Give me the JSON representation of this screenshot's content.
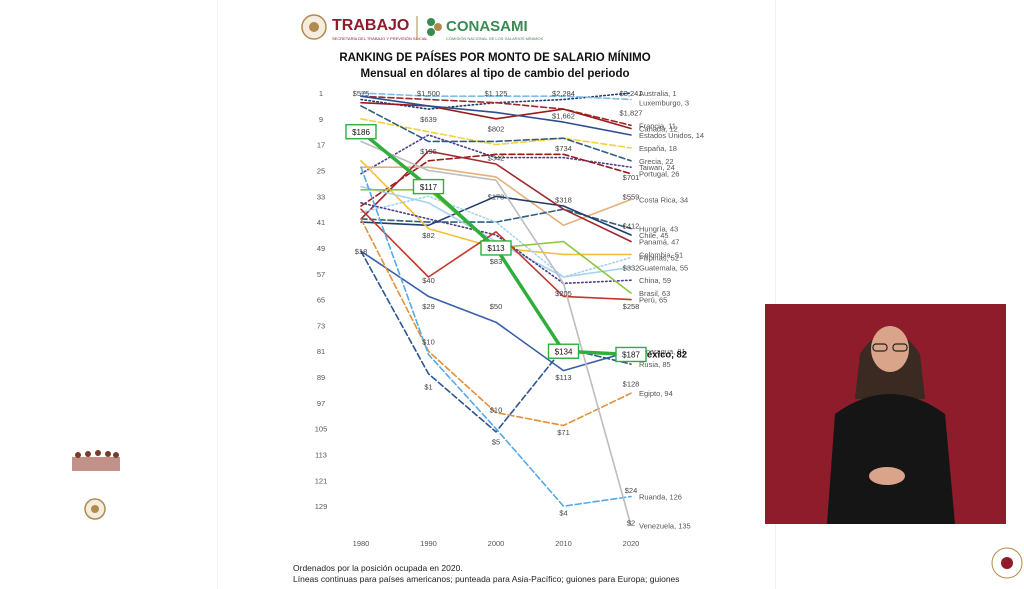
{
  "header": {
    "trabajo": "TRABAJO",
    "trabajo_sub": "SECRETARÍA DEL TRABAJO Y PREVISIÓN SOCIAL",
    "conasami": "CONASAMI",
    "conasami_sub": "COMISIÓN NACIONAL DE LOS SALARIOS MÍNIMOS"
  },
  "footnote": {
    "line1": "Ordenados por la posición ocupada en 2020.",
    "line2": "Líneas continuas para países americanos; punteada para Asia-Pacífico; guiones para Europa; guiones"
  },
  "colors": {
    "mexico": "#2fae3c",
    "interpreter_bg": "#8e1c2b",
    "gold": "#b08b4f",
    "conasami_green": "#3a8a53"
  },
  "chart_data": {
    "type": "line",
    "title": "RANKING DE PAÍSES POR MONTO DE SALARIO MÍNIMO",
    "subtitle": "Mensual en dólares al tipo de cambio del periodo",
    "x": [
      "1980",
      "1990",
      "2000",
      "2010",
      "2020"
    ],
    "y_ticks": [
      "1",
      "9",
      "17",
      "25",
      "33",
      "41",
      "49",
      "57",
      "65",
      "73",
      "81",
      "89",
      "97",
      "105",
      "113",
      "121",
      "129"
    ],
    "ylim": [
      1,
      137
    ],
    "y_reversed": true,
    "series": [
      {
        "name": "Australia, 1",
        "style": "dotted",
        "color": "#1f3d6e",
        "values": [
          3,
          6,
          4,
          3,
          1
        ]
      },
      {
        "name": "Luxemburgo, 3",
        "style": "dashed",
        "color": "#7fbbe6",
        "values": [
          1,
          2,
          2,
          2,
          3
        ]
      },
      {
        "name": "Francia, 11",
        "style": "dashed",
        "color": "#a0282c",
        "values": [
          2,
          3,
          4,
          6,
          11
        ]
      },
      {
        "name": "Canadá, 12",
        "style": "solid",
        "color": "#9b1b1b",
        "values": [
          4,
          5,
          9,
          6,
          12
        ]
      },
      {
        "name": "Estados Unidos, 14",
        "style": "solid",
        "color": "#2e4f8f",
        "values": [
          2,
          5,
          7,
          10,
          14
        ]
      },
      {
        "name": "España, 18",
        "style": "dashed",
        "color": "#f5d23c",
        "values": [
          9,
          13,
          17,
          15,
          18
        ]
      },
      {
        "name": "Grecia, 22",
        "style": "dashed",
        "color": "#2e5f82",
        "values": [
          5,
          16,
          16,
          15,
          22
        ]
      },
      {
        "name": "Taiwan, 24",
        "style": "dotted",
        "color": "#4c3f8f",
        "values": [
          26,
          14,
          21,
          21,
          24
        ]
      },
      {
        "name": "Portugal, 26",
        "style": "dashed",
        "color": "#9b1b1b",
        "values": [
          36,
          22,
          20,
          20,
          26
        ]
      },
      {
        "name": "Costa Rica, 34",
        "style": "solid",
        "color": "#e6b07a",
        "values": [
          24,
          24,
          27,
          42,
          34
        ]
      },
      {
        "name": "Hungría, 43",
        "style": "dashed",
        "color": "#2e5f82",
        "values": [
          40,
          41,
          41,
          37,
          43
        ]
      },
      {
        "name": "Chile, 45",
        "style": "solid",
        "color": "#1f3d6e",
        "values": [
          41,
          42,
          33,
          36,
          45
        ]
      },
      {
        "name": "Panamá, 47",
        "style": "solid",
        "color": "#a0282c",
        "values": [
          40,
          19,
          23,
          37,
          47
        ]
      },
      {
        "name": "Colombia, 51",
        "style": "solid",
        "color": "#f2c232",
        "values": [
          22,
          43,
          49,
          51,
          51
        ]
      },
      {
        "name": "Filipinas, 52",
        "style": "dotted",
        "color": "#a8d2ef",
        "values": [
          38,
          33,
          41,
          58,
          52
        ]
      },
      {
        "name": "Guatemala, 55",
        "style": "solid",
        "color": "#a8d2ef",
        "values": [
          30,
          35,
          47,
          58,
          55
        ]
      },
      {
        "name": "China, 59",
        "style": "dotted",
        "color": "#4c3f8f",
        "values": [
          35,
          40,
          45,
          60,
          59
        ]
      },
      {
        "name": "Brasil, 63",
        "style": "solid",
        "color": "#8dc63f",
        "values": [
          31,
          31,
          49,
          47,
          63
        ]
      },
      {
        "name": "Perú, 65",
        "style": "solid",
        "color": "#c0392b",
        "values": [
          37,
          58,
          44,
          64,
          65
        ]
      },
      {
        "name": "Nicaragua, 81",
        "style": "solid",
        "color": "#3a5fa8",
        "values": [
          50,
          64,
          72,
          87,
          81
        ]
      },
      {
        "name": "México, 82",
        "style": "solid",
        "color": "#2fae3c",
        "values": [
          13,
          30,
          49,
          81,
          82
        ]
      },
      {
        "name": "Rusia, 85",
        "style": "dashed",
        "color": "#2a5590",
        "values": [
          50,
          88,
          106,
          80,
          85
        ]
      },
      {
        "name": "Egipto, 94",
        "style": "dashed",
        "color": "#e0913a",
        "values": [
          40,
          81,
          100,
          104,
          94
        ]
      },
      {
        "name": "Ruanda, 126",
        "style": "dashed",
        "color": "#55a9e6",
        "values": [
          24,
          82,
          105,
          129,
          126
        ]
      },
      {
        "name": "Venezuela, 135",
        "style": "solid",
        "color": "#bdbdbd",
        "values": [
          16,
          25,
          28,
          60,
          135
        ]
      }
    ],
    "value_labels": [
      {
        "text": "$575",
        "x": "1980",
        "y": 1
      },
      {
        "text": "$1,500",
        "x": "1990",
        "y": 1
      },
      {
        "text": "$1,125",
        "x": "2000",
        "y": 1
      },
      {
        "text": "$2,284",
        "x": "2010",
        "y": 1
      },
      {
        "text": "$3,241",
        "x": "2020",
        "y": 1
      },
      {
        "text": "$639",
        "x": "1990",
        "y": 9
      },
      {
        "text": "$802",
        "x": "2000",
        "y": 12
      },
      {
        "text": "$1,662",
        "x": "2010",
        "y": 8
      },
      {
        "text": "$1,827",
        "x": "2020",
        "y": 7
      },
      {
        "text": "$196",
        "x": "1990",
        "y": 19
      },
      {
        "text": "$342",
        "x": "2000",
        "y": 21
      },
      {
        "text": "$734",
        "x": "2010",
        "y": 18
      },
      {
        "text": "$701",
        "x": "2020",
        "y": 27
      },
      {
        "text": "$178",
        "x": "2000",
        "y": 33
      },
      {
        "text": "$318",
        "x": "2010",
        "y": 34
      },
      {
        "text": "$559",
        "x": "2020",
        "y": 33
      },
      {
        "text": "$82",
        "x": "1990",
        "y": 45
      },
      {
        "text": "$412",
        "x": "2020",
        "y": 42
      },
      {
        "text": "$18",
        "x": "1980",
        "y": 50
      },
      {
        "text": "$40",
        "x": "1990",
        "y": 59
      },
      {
        "text": "$83",
        "x": "2000",
        "y": 53
      },
      {
        "text": "$332",
        "x": "2020",
        "y": 55
      },
      {
        "text": "$205",
        "x": "2010",
        "y": 63
      },
      {
        "text": "$258",
        "x": "2020",
        "y": 67
      },
      {
        "text": "$29",
        "x": "1990",
        "y": 67
      },
      {
        "text": "$50",
        "x": "2000",
        "y": 67
      },
      {
        "text": "$10",
        "x": "1990",
        "y": 78
      },
      {
        "text": "$113",
        "x": "2010",
        "y": 89
      },
      {
        "text": "$128",
        "x": "2020",
        "y": 91
      },
      {
        "text": "$1",
        "x": "1990",
        "y": 92
      },
      {
        "text": "$10",
        "x": "2000",
        "y": 99
      },
      {
        "text": "$71",
        "x": "2010",
        "y": 106
      },
      {
        "text": "$5",
        "x": "2000",
        "y": 109
      },
      {
        "text": "$4",
        "x": "2010",
        "y": 131
      },
      {
        "text": "$24",
        "x": "2020",
        "y": 124
      },
      {
        "text": "$2",
        "x": "2020",
        "y": 134
      }
    ],
    "mexico_boxes": [
      {
        "text": "$186",
        "x": "1980",
        "y": 13
      },
      {
        "text": "$117",
        "x": "1990",
        "y": 30
      },
      {
        "text": "$113",
        "x": "2000",
        "y": 49
      },
      {
        "text": "$134",
        "x": "2010",
        "y": 81
      },
      {
        "text": "$187",
        "x": "2020",
        "y": 82
      }
    ]
  }
}
